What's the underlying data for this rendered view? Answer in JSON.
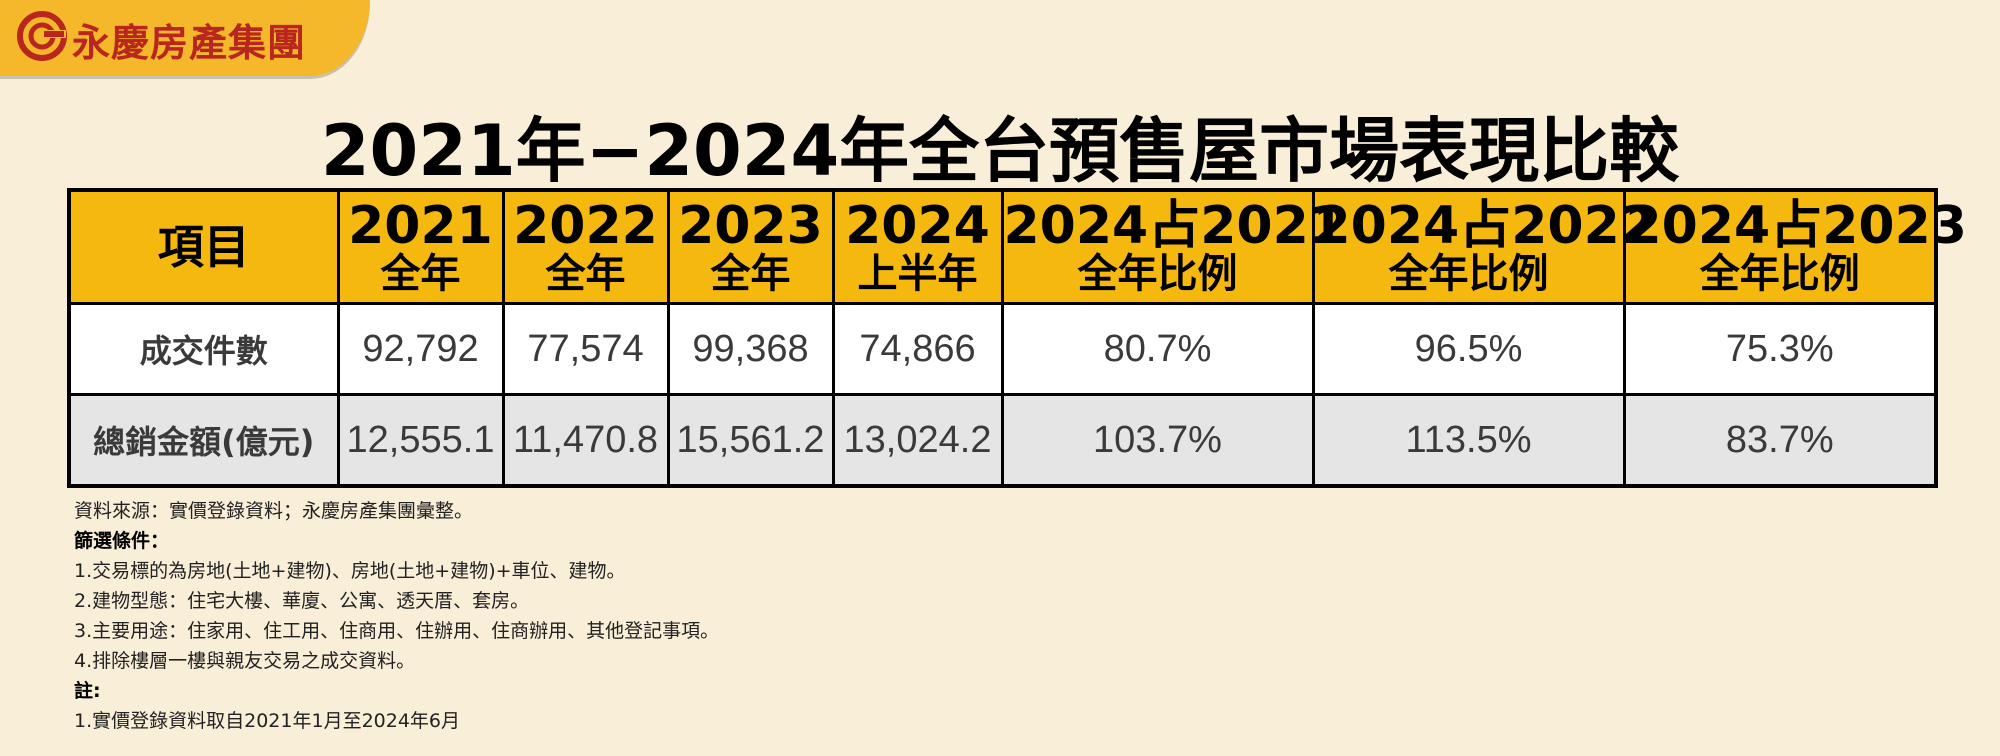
{
  "brand": {
    "name": "永慶房產集團",
    "logo_icon": "yungching-swirl-icon",
    "colors": {
      "tab": "#f5b82a",
      "logo": "#b8261d",
      "header": "#f5b80e",
      "background": "#f9eed8"
    }
  },
  "chart_data": {
    "type": "table",
    "title": "2021年−2024年全台預售屋市場表現比較",
    "header_first": "項目",
    "columns": [
      {
        "line1": "2021",
        "line2": "全年"
      },
      {
        "line1": "2022",
        "line2": "全年"
      },
      {
        "line1": "2023",
        "line2": "全年"
      },
      {
        "line1": "2024",
        "line2": "上半年"
      },
      {
        "line1": "2024占2021",
        "line2": "全年比例"
      },
      {
        "line1": "2024占2022",
        "line2": "全年比例"
      },
      {
        "line1": "2024占2023",
        "line2": "全年比例"
      }
    ],
    "rows": [
      {
        "label": "成交件數",
        "values": [
          "92,792",
          "77,574",
          "99,368",
          "74,866",
          "80.7%",
          "96.5%",
          "75.3%"
        ]
      },
      {
        "label": "總銷金額(億元)",
        "values": [
          "12,555.1",
          "11,470.8",
          "15,561.2",
          "13,024.2",
          "103.7%",
          "113.5%",
          "83.7%"
        ]
      }
    ]
  },
  "notes": {
    "source": "資料來源：實價登錄資料；永慶房產集團彙整。",
    "filter_heading": "篩選條件：",
    "filters": [
      "1.交易標的為房地(土地+建物)、房地(土地+建物)+車位、建物。",
      "2.建物型態：住宅大樓、華廈、公寓、透天厝、套房。",
      "3.主要用途：住家用、住工用、住商用、住辦用、住商辦用、其他登記事項。",
      "4.排除樓層一樓與親友交易之成交資料。"
    ],
    "remark_heading": "註:",
    "remarks": [
      "1.實價登錄資料取自2021年1月至2024年6月"
    ]
  }
}
